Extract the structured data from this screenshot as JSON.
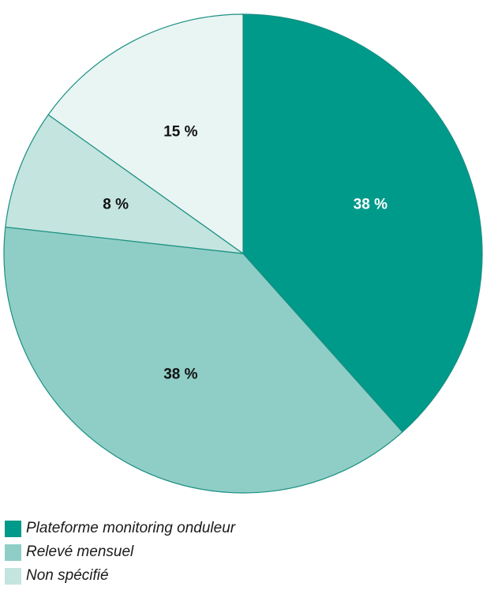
{
  "chart_data": {
    "type": "pie",
    "slices": [
      {
        "label": "Plateforme monitoring onduleur",
        "value": 38,
        "value_label": "38 %",
        "color": "#009a8a",
        "label_color": "#ffffff"
      },
      {
        "label": "Relevé mensuel",
        "value": 38,
        "value_label": "38 %",
        "color": "#8fcec6",
        "label_color": "#111111"
      },
      {
        "label": "",
        "value": 8,
        "value_label": "8 %",
        "color": "#c3e4df",
        "label_color": "#111111"
      },
      {
        "label": "",
        "value": 15,
        "value_label": "15 %",
        "color": "#e9f5f3",
        "label_color": "#111111"
      }
    ],
    "legend": [
      {
        "label": "Plateforme monitoring onduleur",
        "color": "#009a8a"
      },
      {
        "label": "Relevé mensuel",
        "color": "#8fcec6"
      },
      {
        "label": "Non spécifié",
        "color": "#c3e4df"
      }
    ],
    "legend_position": "bottom-left",
    "stroke_color": "#1a8f82"
  }
}
